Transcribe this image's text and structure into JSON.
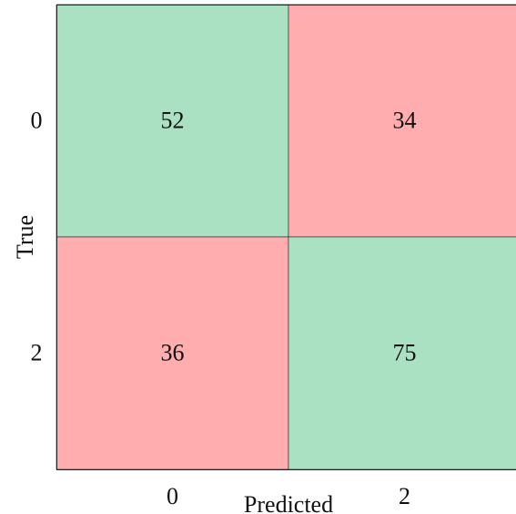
{
  "chart_data": {
    "type": "heatmap",
    "title": "",
    "xlabel": "Predicted",
    "ylabel": "True",
    "x_categories": [
      "0",
      "2"
    ],
    "y_categories": [
      "0",
      "2"
    ],
    "values": [
      [
        52,
        34
      ],
      [
        36,
        75
      ]
    ],
    "colors": {
      "correct": "#abe1c3",
      "incorrect": "#ffadae",
      "border": "#222222"
    }
  }
}
